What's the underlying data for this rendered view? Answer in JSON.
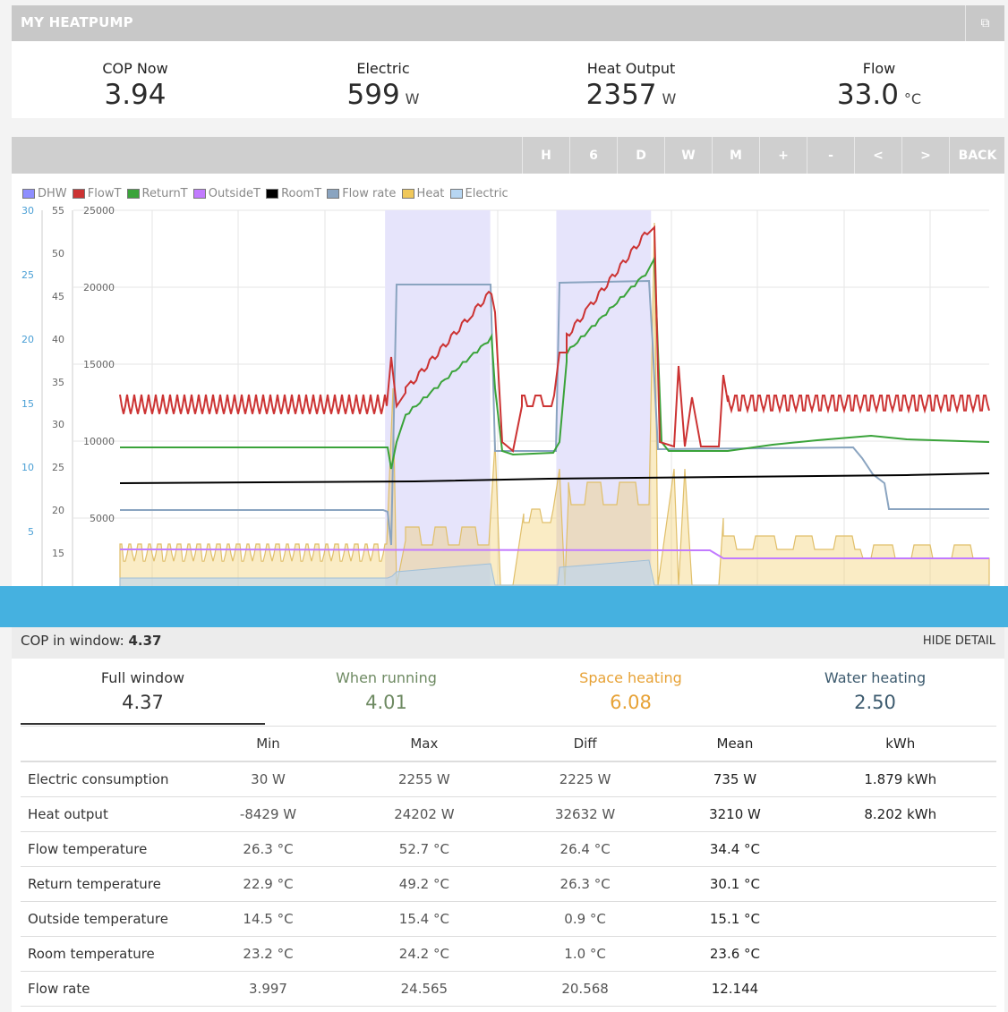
{
  "app": {
    "title": "MY HEATPUMP"
  },
  "stats": [
    {
      "label": "COP Now",
      "value": "3.94",
      "unit": ""
    },
    {
      "label": "Electric",
      "value": "599",
      "unit": "W"
    },
    {
      "label": "Heat Output",
      "value": "2357",
      "unit": "W"
    },
    {
      "label": "Flow",
      "value": "33.0",
      "unit": "°C"
    }
  ],
  "toolbar": {
    "buttons": [
      "H",
      "6",
      "D",
      "W",
      "M",
      "+",
      "-",
      "<",
      ">",
      "BACK"
    ]
  },
  "legend": [
    {
      "name": "DHW",
      "color": "#8f8fff"
    },
    {
      "name": "FlowT",
      "color": "#cc3333"
    },
    {
      "name": "ReturnT",
      "color": "#3aa33a"
    },
    {
      "name": "OutsideT",
      "color": "#c27bff"
    },
    {
      "name": "RoomT",
      "color": "#000000"
    },
    {
      "name": "Flow rate",
      "color": "#8aa4c0"
    },
    {
      "name": "Heat",
      "color": "#f0c85a"
    },
    {
      "name": "Electric",
      "color": "#b7d6f2"
    }
  ],
  "chart_data": {
    "type": "line",
    "axes": {
      "flow_rate": {
        "ticks": [
          "30",
          "25",
          "20",
          "15",
          "10",
          "5"
        ]
      },
      "temperature": {
        "ticks": [
          "55",
          "50",
          "45",
          "40",
          "35",
          "30",
          "25",
          "20",
          "15"
        ]
      },
      "power": {
        "ticks": [
          "25000",
          "20000",
          "15000",
          "10000",
          "5000"
        ]
      }
    },
    "dhw_periods": [
      [
        0.305,
        0.426
      ],
      [
        0.502,
        0.611
      ]
    ],
    "series": [
      {
        "name": "FlowT",
        "color": "#cc3333"
      },
      {
        "name": "ReturnT",
        "color": "#3aa33a"
      },
      {
        "name": "RoomT",
        "color": "#000000"
      },
      {
        "name": "OutsideT",
        "color": "#c27bff"
      },
      {
        "name": "Flow rate",
        "color": "#8aa4c0"
      },
      {
        "name": "Heat",
        "color": "#f0c85a"
      }
    ]
  },
  "detail": {
    "cop_label": "COP in window:",
    "cop_value": "4.37",
    "hide_label": "HIDE DETAIL",
    "tabs": [
      {
        "label": "Full window",
        "value": "4.37",
        "color": "#333333"
      },
      {
        "label": "When running",
        "value": "4.01",
        "color": "#6e8a62"
      },
      {
        "label": "Space heating",
        "value": "6.08",
        "color": "#e7a236"
      },
      {
        "label": "Water heating",
        "value": "2.50",
        "color": "#3c5a6e"
      }
    ],
    "columns": [
      "",
      "Min",
      "Max",
      "Diff",
      "Mean",
      "kWh"
    ],
    "rows": [
      {
        "name": "Electric consumption",
        "min": "30 W",
        "max": "2255 W",
        "diff": "2225 W",
        "mean": "735 W",
        "kwh": "1.879 kWh"
      },
      {
        "name": "Heat output",
        "min": "-8429 W",
        "max": "24202 W",
        "diff": "32632 W",
        "mean": "3210 W",
        "kwh": "8.202 kWh"
      },
      {
        "name": "Flow temperature",
        "min": "26.3 °C",
        "max": "52.7 °C",
        "diff": "26.4 °C",
        "mean": "34.4 °C",
        "kwh": ""
      },
      {
        "name": "Return temperature",
        "min": "22.9 °C",
        "max": "49.2 °C",
        "diff": "26.3 °C",
        "mean": "30.1 °C",
        "kwh": ""
      },
      {
        "name": "Outside temperature",
        "min": "14.5 °C",
        "max": "15.4 °C",
        "diff": "0.9 °C",
        "mean": "15.1 °C",
        "kwh": ""
      },
      {
        "name": "Room temperature",
        "min": "23.2 °C",
        "max": "24.2 °C",
        "diff": "1.0 °C",
        "mean": "23.6 °C",
        "kwh": ""
      },
      {
        "name": "Flow rate",
        "min": "3.997",
        "max": "24.565",
        "diff": "20.568",
        "mean": "12.144",
        "kwh": ""
      }
    ]
  }
}
